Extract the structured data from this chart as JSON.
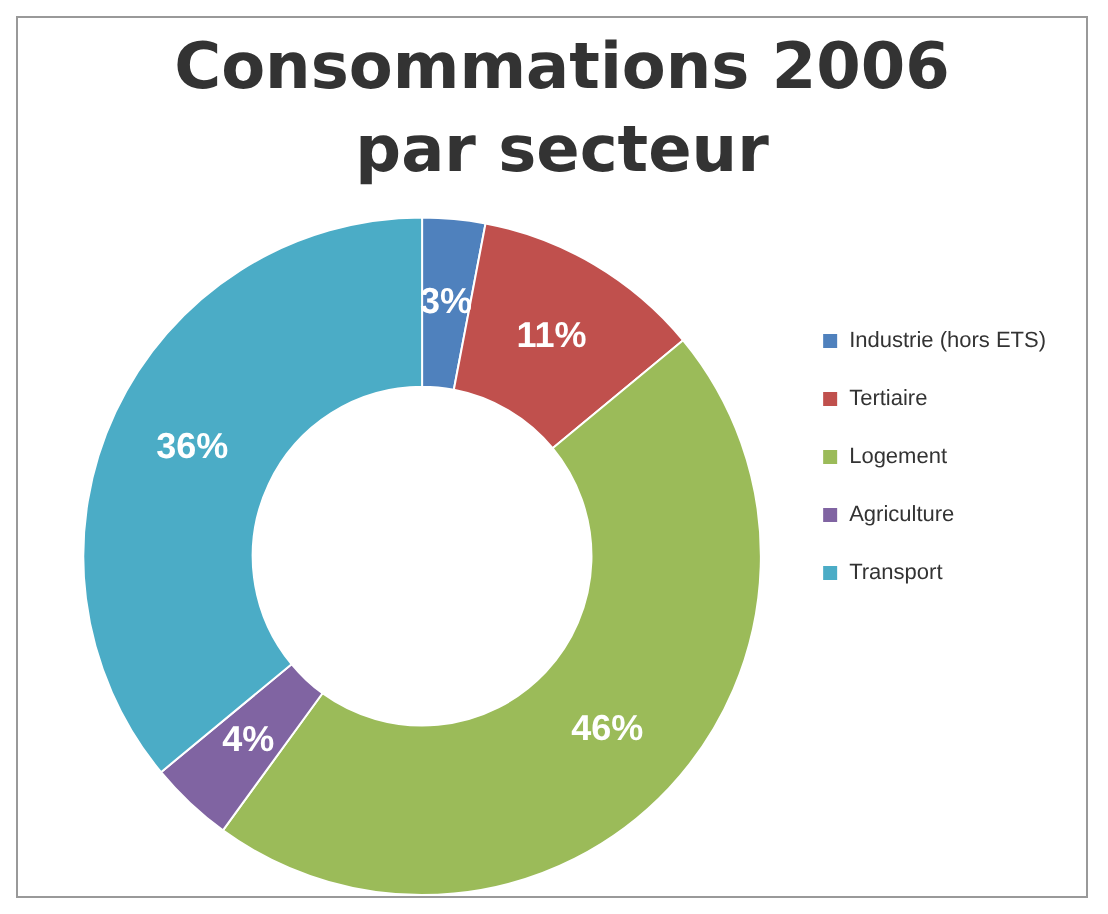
{
  "chart_data": {
    "type": "donut",
    "title": "Consommations 2006 par secteur",
    "categories": [
      "Industrie (hors ETS)",
      "Tertiaire",
      "Logement",
      "Agriculture",
      "Transport"
    ],
    "values": [
      3,
      11,
      46,
      4,
      36
    ],
    "colors": [
      "#4f81bd",
      "#c0504d",
      "#9bbb59",
      "#8064a2",
      "#4bacc6"
    ],
    "value_labels": [
      "3%",
      "11%",
      "46%",
      "4%",
      "36%"
    ],
    "legend": "right"
  }
}
